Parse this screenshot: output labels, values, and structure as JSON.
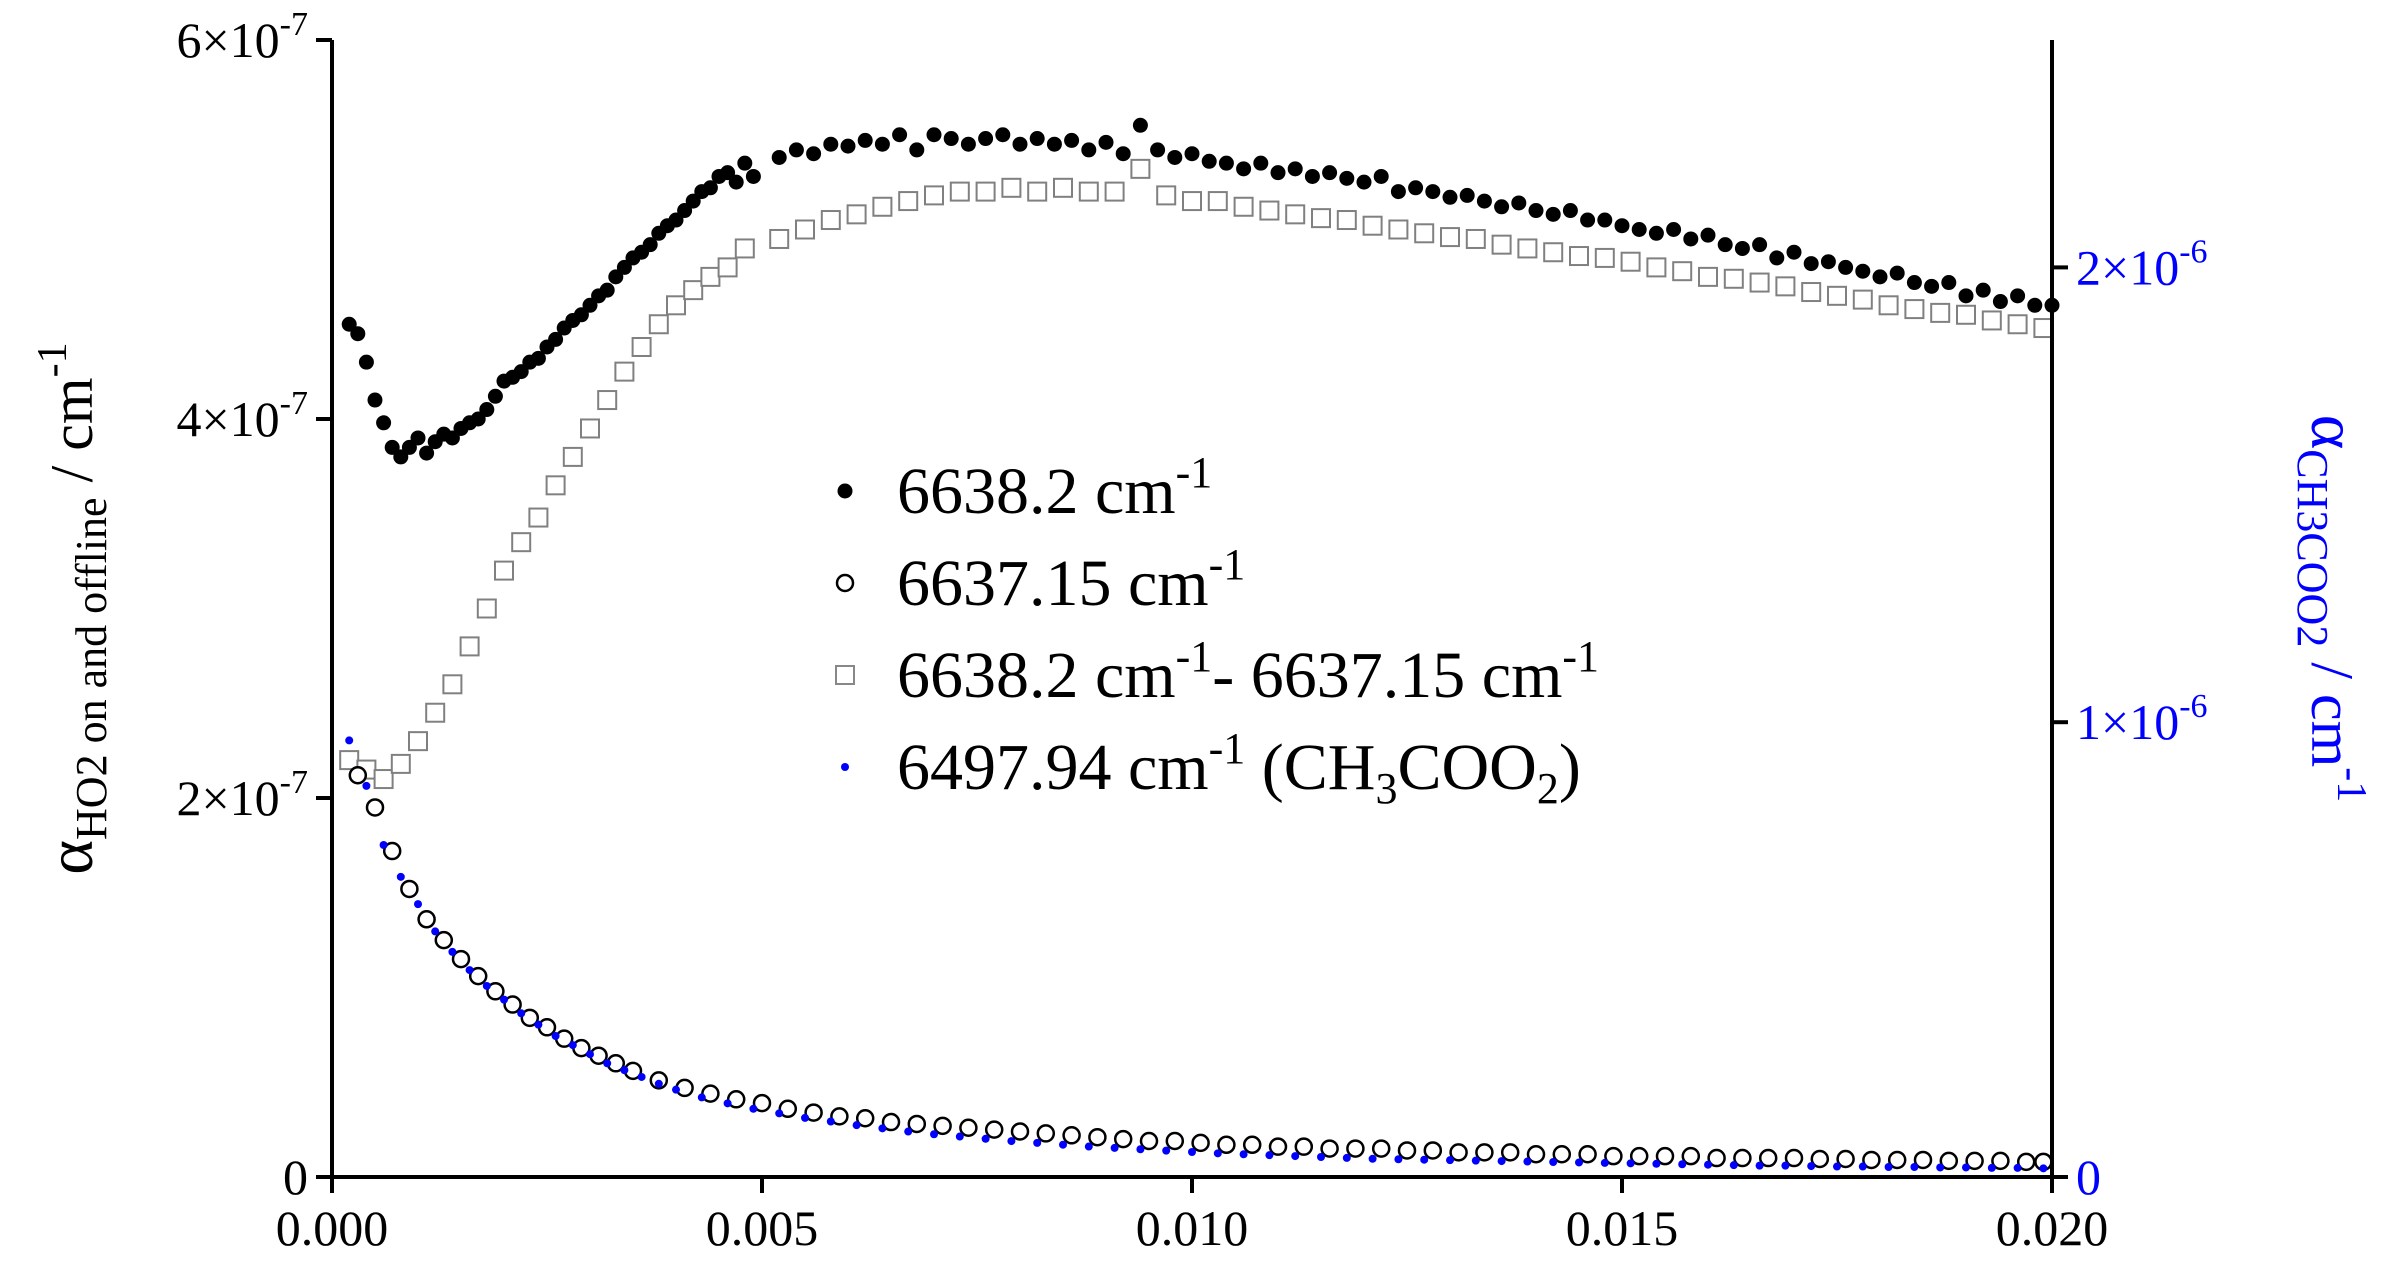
{
  "chart_data": {
    "type": "scatter",
    "title": "",
    "xlabel": "",
    "ylabel_left": {
      "symbol": "α",
      "subscript": "HO2 on and offline",
      "unit": " / cm",
      "exponent": "-1"
    },
    "ylabel_right": {
      "symbol": "α",
      "subscript": "CH3COO2",
      "unit": " / cm",
      "exponent": "-1"
    },
    "xlim": [
      0.0,
      0.02
    ],
    "ylim_left": [
      0,
      6e-07
    ],
    "ylim_right": [
      0,
      2.5e-06
    ],
    "x_ticks": [
      {
        "value": 0.0,
        "label": "0.000"
      },
      {
        "value": 0.005,
        "label": "0.005"
      },
      {
        "value": 0.01,
        "label": "0.010"
      },
      {
        "value": 0.015,
        "label": "0.015"
      },
      {
        "value": 0.02,
        "label": "0.020"
      }
    ],
    "y_ticks_left": [
      {
        "value": 0,
        "mantissa": "0",
        "exponent": ""
      },
      {
        "value": 2e-07,
        "mantissa": "2×10",
        "exponent": "-7"
      },
      {
        "value": 4e-07,
        "mantissa": "4×10",
        "exponent": "-7"
      },
      {
        "value": 6e-07,
        "mantissa": "6×10",
        "exponent": "-7"
      }
    ],
    "y_ticks_right": [
      {
        "value": 0,
        "mantissa": "0",
        "exponent": ""
      },
      {
        "value": 1e-06,
        "mantissa": "1×10",
        "exponent": "-6"
      },
      {
        "value": 2e-06,
        "mantissa": "2×10",
        "exponent": "-6"
      }
    ],
    "legend_position": "center",
    "legend": [
      {
        "marker": "filled-circle",
        "color": "#000000",
        "parts": [
          {
            "t": "6638.2 cm"
          },
          {
            "t": "-1",
            "sup": true
          }
        ]
      },
      {
        "marker": "open-circle",
        "color": "#000000",
        "parts": [
          {
            "t": "6637.15 cm"
          },
          {
            "t": "-1",
            "sup": true
          }
        ]
      },
      {
        "marker": "open-square",
        "color": "#888888",
        "parts": [
          {
            "t": "6638.2 cm"
          },
          {
            "t": "-1",
            "sup": true
          },
          {
            "t": "- 6637.15 cm"
          },
          {
            "t": "-1",
            "sup": true
          }
        ]
      },
      {
        "marker": "small-dot",
        "color": "#0000ff",
        "parts": [
          {
            "t": "6497.94 cm"
          },
          {
            "t": "-1",
            "sup": true
          },
          {
            "t": " (CH"
          },
          {
            "t": "3",
            "sub": true
          },
          {
            "t": "COO"
          },
          {
            "t": "2",
            "sub": true
          },
          {
            "t": ")"
          }
        ]
      }
    ],
    "series": [
      {
        "name": "6638.2 cm-1",
        "axis": "left",
        "marker": "filled-circle",
        "x": [
          0.0002,
          0.0003,
          0.0004,
          0.0005,
          0.0006,
          0.0007,
          0.0008,
          0.0009,
          0.001,
          0.0011,
          0.0012,
          0.0013,
          0.0014,
          0.0015,
          0.0016,
          0.0017,
          0.0018,
          0.0019,
          0.002,
          0.0021,
          0.0022,
          0.0023,
          0.0024,
          0.0025,
          0.0026,
          0.0027,
          0.0028,
          0.0029,
          0.003,
          0.0031,
          0.0032,
          0.0033,
          0.0034,
          0.0035,
          0.0036,
          0.0037,
          0.0038,
          0.0039,
          0.004,
          0.0041,
          0.0042,
          0.0043,
          0.0044,
          0.0045,
          0.0046,
          0.0047,
          0.0048,
          0.0049,
          0.0052,
          0.0054,
          0.0056,
          0.0058,
          0.006,
          0.0062,
          0.0064,
          0.0066,
          0.0068,
          0.007,
          0.0072,
          0.0074,
          0.0076,
          0.0078,
          0.008,
          0.0082,
          0.0084,
          0.0086,
          0.0088,
          0.009,
          0.0092,
          0.0094,
          0.0096,
          0.0098,
          0.01,
          0.0102,
          0.0104,
          0.0106,
          0.0108,
          0.011,
          0.0112,
          0.0114,
          0.0116,
          0.0118,
          0.012,
          0.0122,
          0.0124,
          0.0126,
          0.0128,
          0.013,
          0.0132,
          0.0134,
          0.0136,
          0.0138,
          0.014,
          0.0142,
          0.0144,
          0.0146,
          0.0148,
          0.015,
          0.0152,
          0.0154,
          0.0156,
          0.0158,
          0.016,
          0.0162,
          0.0164,
          0.0166,
          0.0168,
          0.017,
          0.0172,
          0.0174,
          0.0176,
          0.0178,
          0.018,
          0.0182,
          0.0184,
          0.0186,
          0.0188,
          0.019,
          0.0192,
          0.0194,
          0.0196,
          0.0198,
          0.02
        ],
        "y": [
          4.5e-07,
          4.45e-07,
          4.3e-07,
          4.1e-07,
          3.98e-07,
          3.85e-07,
          3.8e-07,
          3.85e-07,
          3.9e-07,
          3.82e-07,
          3.88e-07,
          3.92e-07,
          3.9e-07,
          3.95e-07,
          3.98e-07,
          4e-07,
          4.05e-07,
          4.12e-07,
          4.2e-07,
          4.22e-07,
          4.25e-07,
          4.3e-07,
          4.32e-07,
          4.38e-07,
          4.42e-07,
          4.48e-07,
          4.52e-07,
          4.55e-07,
          4.6e-07,
          4.65e-07,
          4.68e-07,
          4.75e-07,
          4.8e-07,
          4.85e-07,
          4.88e-07,
          4.92e-07,
          4.98e-07,
          5.02e-07,
          5.05e-07,
          5.1e-07,
          5.15e-07,
          5.2e-07,
          5.22e-07,
          5.28e-07,
          5.3e-07,
          5.25e-07,
          5.35e-07,
          5.28e-07,
          5.38e-07,
          5.42e-07,
          5.4e-07,
          5.45e-07,
          5.44e-07,
          5.47e-07,
          5.45e-07,
          5.5e-07,
          5.42e-07,
          5.5e-07,
          5.48e-07,
          5.45e-07,
          5.48e-07,
          5.5e-07,
          5.45e-07,
          5.48e-07,
          5.45e-07,
          5.47e-07,
          5.42e-07,
          5.46e-07,
          5.4e-07,
          5.55e-07,
          5.42e-07,
          5.38e-07,
          5.4e-07,
          5.36e-07,
          5.35e-07,
          5.32e-07,
          5.35e-07,
          5.3e-07,
          5.32e-07,
          5.28e-07,
          5.3e-07,
          5.27e-07,
          5.25e-07,
          5.28e-07,
          5.2e-07,
          5.22e-07,
          5.2e-07,
          5.17e-07,
          5.18e-07,
          5.15e-07,
          5.12e-07,
          5.14e-07,
          5.1e-07,
          5.08e-07,
          5.1e-07,
          5.05e-07,
          5.05e-07,
          5.02e-07,
          5e-07,
          4.98e-07,
          5e-07,
          4.95e-07,
          4.97e-07,
          4.92e-07,
          4.9e-07,
          4.92e-07,
          4.85e-07,
          4.88e-07,
          4.82e-07,
          4.83e-07,
          4.8e-07,
          4.78e-07,
          4.75e-07,
          4.77e-07,
          4.72e-07,
          4.7e-07,
          4.72e-07,
          4.65e-07,
          4.68e-07,
          4.62e-07,
          4.65e-07,
          4.6e-07,
          4.6e-07
        ]
      },
      {
        "name": "6637.15 cm-1",
        "axis": "left",
        "marker": "open-circle",
        "x": [
          0.0003,
          0.0005,
          0.0007,
          0.0009,
          0.0011,
          0.0013,
          0.0015,
          0.0017,
          0.0019,
          0.0021,
          0.0023,
          0.0025,
          0.0027,
          0.0029,
          0.0031,
          0.0033,
          0.0035,
          0.0038,
          0.0041,
          0.0044,
          0.0047,
          0.005,
          0.0053,
          0.0056,
          0.0059,
          0.0062,
          0.0065,
          0.0068,
          0.0071,
          0.0074,
          0.0077,
          0.008,
          0.0083,
          0.0086,
          0.0089,
          0.0092,
          0.0095,
          0.0098,
          0.0101,
          0.0104,
          0.0107,
          0.011,
          0.0113,
          0.0116,
          0.0119,
          0.0122,
          0.0125,
          0.0128,
          0.0131,
          0.0134,
          0.0137,
          0.014,
          0.0143,
          0.0146,
          0.0149,
          0.0152,
          0.0155,
          0.0158,
          0.0161,
          0.0164,
          0.0167,
          0.017,
          0.0173,
          0.0176,
          0.0179,
          0.0182,
          0.0185,
          0.0188,
          0.0191,
          0.0194,
          0.0197,
          0.0199
        ],
        "y": [
          2.12e-07,
          1.95e-07,
          1.72e-07,
          1.52e-07,
          1.36e-07,
          1.25e-07,
          1.15e-07,
          1.06e-07,
          9.8e-08,
          9.1e-08,
          8.4e-08,
          7.9e-08,
          7.3e-08,
          6.8e-08,
          6.4e-08,
          6e-08,
          5.6e-08,
          5.1e-08,
          4.7e-08,
          4.4e-08,
          4.1e-08,
          3.9e-08,
          3.6e-08,
          3.4e-08,
          3.2e-08,
          3.1e-08,
          2.9e-08,
          2.8e-08,
          2.7e-08,
          2.6e-08,
          2.5e-08,
          2.4e-08,
          2.3e-08,
          2.2e-08,
          2.1e-08,
          2e-08,
          1.9e-08,
          1.9e-08,
          1.8e-08,
          1.7e-08,
          1.7e-08,
          1.6e-08,
          1.6e-08,
          1.5e-08,
          1.5e-08,
          1.5e-08,
          1.4e-08,
          1.4e-08,
          1.3e-08,
          1.3e-08,
          1.3e-08,
          1.2e-08,
          1.2e-08,
          1.2e-08,
          1.1e-08,
          1.1e-08,
          1.1e-08,
          1.1e-08,
          1e-08,
          1e-08,
          1e-08,
          1e-08,
          9.5e-09,
          9.5e-09,
          9e-09,
          9e-09,
          9e-09,
          8.5e-09,
          8.5e-09,
          8.5e-09,
          8e-09,
          8e-09
        ]
      },
      {
        "name": "6638.2 cm-1- 6637.15 cm-1",
        "axis": "left",
        "marker": "open-square",
        "x": [
          0.0002,
          0.0004,
          0.0006,
          0.0008,
          0.001,
          0.0012,
          0.0014,
          0.0016,
          0.0018,
          0.002,
          0.0022,
          0.0024,
          0.0026,
          0.0028,
          0.003,
          0.0032,
          0.0034,
          0.0036,
          0.0038,
          0.004,
          0.0042,
          0.0044,
          0.0046,
          0.0048,
          0.0052,
          0.0055,
          0.0058,
          0.0061,
          0.0064,
          0.0067,
          0.007,
          0.0073,
          0.0076,
          0.0079,
          0.0082,
          0.0085,
          0.0088,
          0.0091,
          0.0094,
          0.0097,
          0.01,
          0.0103,
          0.0106,
          0.0109,
          0.0112,
          0.0115,
          0.0118,
          0.0121,
          0.0124,
          0.0127,
          0.013,
          0.0133,
          0.0136,
          0.0139,
          0.0142,
          0.0145,
          0.0148,
          0.0151,
          0.0154,
          0.0157,
          0.016,
          0.0163,
          0.0166,
          0.0169,
          0.0172,
          0.0175,
          0.0178,
          0.0181,
          0.0184,
          0.0187,
          0.019,
          0.0193,
          0.0196,
          0.0199
        ],
        "y": [
          2.2e-07,
          2.15e-07,
          2.1e-07,
          2.18e-07,
          2.3e-07,
          2.45e-07,
          2.6e-07,
          2.8e-07,
          3e-07,
          3.2e-07,
          3.35e-07,
          3.48e-07,
          3.65e-07,
          3.8e-07,
          3.95e-07,
          4.1e-07,
          4.25e-07,
          4.38e-07,
          4.5e-07,
          4.6e-07,
          4.68e-07,
          4.75e-07,
          4.8e-07,
          4.9e-07,
          4.95e-07,
          5e-07,
          5.05e-07,
          5.08e-07,
          5.12e-07,
          5.15e-07,
          5.18e-07,
          5.2e-07,
          5.2e-07,
          5.22e-07,
          5.2e-07,
          5.22e-07,
          5.2e-07,
          5.2e-07,
          5.32e-07,
          5.18e-07,
          5.15e-07,
          5.15e-07,
          5.12e-07,
          5.1e-07,
          5.08e-07,
          5.06e-07,
          5.05e-07,
          5.02e-07,
          5e-07,
          4.98e-07,
          4.96e-07,
          4.95e-07,
          4.92e-07,
          4.9e-07,
          4.88e-07,
          4.86e-07,
          4.85e-07,
          4.83e-07,
          4.8e-07,
          4.78e-07,
          4.75e-07,
          4.74e-07,
          4.72e-07,
          4.7e-07,
          4.67e-07,
          4.65e-07,
          4.63e-07,
          4.6e-07,
          4.58e-07,
          4.56e-07,
          4.55e-07,
          4.52e-07,
          4.5e-07,
          4.48e-07
        ]
      },
      {
        "name": "6497.94 cm-1 (CH3COO2)",
        "axis": "right",
        "marker": "small-dot",
        "x": [
          0.0002,
          0.0004,
          0.0006,
          0.0008,
          0.001,
          0.0012,
          0.0014,
          0.0016,
          0.0018,
          0.002,
          0.0022,
          0.0024,
          0.0026,
          0.0028,
          0.003,
          0.0032,
          0.0034,
          0.0036,
          0.0038,
          0.004,
          0.0043,
          0.0046,
          0.0049,
          0.0052,
          0.0055,
          0.0058,
          0.0061,
          0.0064,
          0.0067,
          0.007,
          0.0073,
          0.0076,
          0.0079,
          0.0082,
          0.0085,
          0.0088,
          0.0091,
          0.0094,
          0.0097,
          0.01,
          0.0103,
          0.0106,
          0.0109,
          0.0112,
          0.0115,
          0.0118,
          0.0121,
          0.0124,
          0.0127,
          0.013,
          0.0133,
          0.0136,
          0.0139,
          0.0142,
          0.0145,
          0.0148,
          0.0151,
          0.0154,
          0.0157,
          0.016,
          0.0163,
          0.0166,
          0.0169,
          0.0172,
          0.0175,
          0.0178,
          0.0181,
          0.0184,
          0.0187,
          0.019,
          0.0193,
          0.0196,
          0.0199
        ],
        "y": [
          9.6e-07,
          8.6e-07,
          7.3e-07,
          6.6e-07,
          6e-07,
          5.4e-07,
          4.95e-07,
          4.55e-07,
          4.2e-07,
          3.9e-07,
          3.6e-07,
          3.35e-07,
          3.1e-07,
          2.9e-07,
          2.7e-07,
          2.5e-07,
          2.35e-07,
          2.2e-07,
          2.05e-07,
          1.92e-07,
          1.75e-07,
          1.62e-07,
          1.5e-07,
          1.4e-07,
          1.3e-07,
          1.22e-07,
          1.14e-07,
          1.07e-07,
          1e-07,
          9.4e-08,
          8.9e-08,
          8.4e-08,
          7.9e-08,
          7.5e-08,
          7.1e-08,
          6.7e-08,
          6.4e-08,
          6.1e-08,
          5.8e-08,
          5.5e-08,
          5.2e-08,
          5e-08,
          4.8e-08,
          4.6e-08,
          4.4e-08,
          4.2e-08,
          4e-08,
          3.9e-08,
          3.8e-08,
          3.7e-08,
          3.6e-08,
          3.5e-08,
          3.4e-08,
          3.3e-08,
          3.2e-08,
          3.1e-08,
          3e-08,
          2.9e-08,
          2.8e-08,
          2.7e-08,
          2.6e-08,
          2.5e-08,
          2.5e-08,
          2.4e-08,
          2.3e-08,
          2.3e-08,
          2.2e-08,
          2.2e-08,
          2.1e-08,
          2.1e-08,
          2e-08,
          2e-08,
          1.9e-08
        ]
      }
    ]
  }
}
